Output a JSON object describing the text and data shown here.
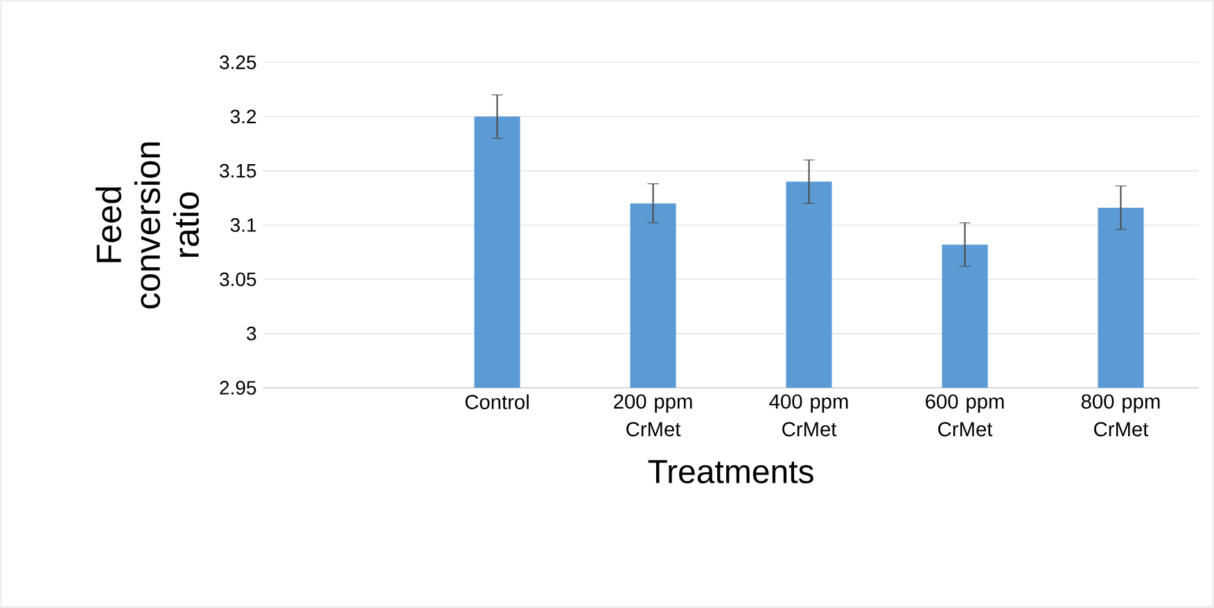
{
  "chart_data": {
    "type": "bar",
    "xlabel": "Treatments",
    "ylabel": "Feed conversion ratio",
    "categories": [
      null,
      "Control",
      "200 ppm CrMet",
      "400 ppm CrMet",
      "600 ppm CrMet",
      "800 ppm CrMet"
    ],
    "values": [
      null,
      3.2,
      3.12,
      3.14,
      3.082,
      3.116
    ],
    "errors": [
      null,
      0.02,
      0.018,
      0.02,
      0.02,
      0.02
    ],
    "color": "#5b9bd5",
    "ylim": [
      2.95,
      3.25
    ],
    "yticks": [
      {
        "value": 2.95,
        "label": "2.95"
      },
      {
        "value": 3,
        "label": "3"
      },
      {
        "value": 3.05,
        "label": "3.05"
      },
      {
        "value": 3.1,
        "label": "3.1"
      },
      {
        "value": 3.15,
        "label": "3.15"
      },
      {
        "value": 3.2,
        "label": "3.2"
      },
      {
        "value": 3.25,
        "label": "3.25"
      }
    ],
    "grid": "y"
  }
}
